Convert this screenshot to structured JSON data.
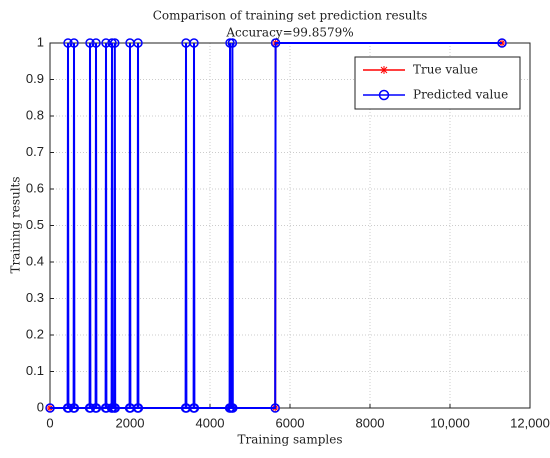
{
  "chart_data": {
    "type": "line",
    "title": "Comparison of training set prediction results",
    "subtitle": "Accuracy=99.8579%",
    "x_label": "Training samples",
    "y_label": "Training results",
    "xlim": [
      0,
      12000
    ],
    "ylim": [
      0,
      1
    ],
    "xticks": [
      0,
      2000,
      4000,
      6000,
      8000,
      {
        "value": 10000,
        "label": "10,000"
      },
      {
        "value": 12000,
        "label": "12,000"
      }
    ],
    "yticks": [
      0,
      0.1,
      0.2,
      0.3,
      0.4,
      0.5,
      0.6,
      0.7,
      0.8,
      0.9,
      1
    ],
    "grid": true,
    "legend": "upper right",
    "series": [
      {
        "name": "True value",
        "color": "#ff0000",
        "marker": "star",
        "x": [
          1,
          5630,
          5640,
          11300
        ],
        "values": [
          0,
          0,
          1,
          1
        ]
      },
      {
        "name": "Predicted value",
        "color": "#0000ff",
        "marker": "circle",
        "x": [
          1,
          440,
          450,
          460,
          590,
          600,
          610,
          990,
          1000,
          1010,
          1140,
          1150,
          1160,
          1390,
          1400,
          1410,
          1540,
          1550,
          1560,
          1610,
          1620,
          1630,
          1990,
          2000,
          2010,
          2190,
          2200,
          2210,
          3390,
          3400,
          3410,
          3590,
          3600,
          3610,
          4490,
          4500,
          4510,
          4550,
          4560,
          4570,
          5630,
          5640,
          11300
        ],
        "values": [
          0,
          0,
          1,
          0,
          0,
          1,
          0,
          0,
          1,
          0,
          0,
          1,
          0,
          0,
          1,
          0,
          0,
          1,
          0,
          0,
          1,
          0,
          0,
          1,
          0,
          0,
          1,
          0,
          0,
          1,
          0,
          0,
          1,
          0,
          0,
          1,
          0,
          0,
          1,
          0,
          0,
          1,
          1
        ]
      }
    ]
  }
}
